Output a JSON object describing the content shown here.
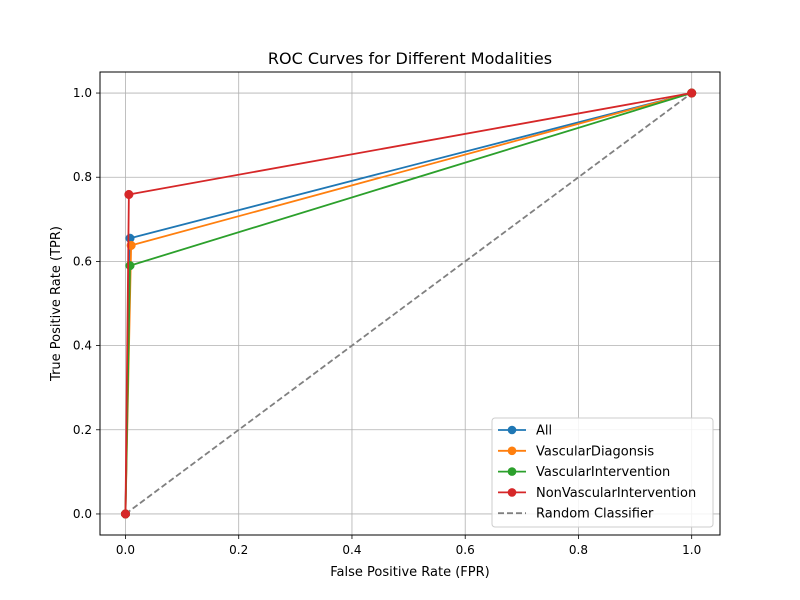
{
  "chart_data": {
    "type": "line",
    "title": "ROC Curves for Different Modalities",
    "xlabel": "False Positive Rate (FPR)",
    "ylabel": "True Positive Rate (TPR)",
    "xlim": [
      -0.045,
      1.05
    ],
    "ylim": [
      -0.05,
      1.05
    ],
    "xticks": [
      0.0,
      0.2,
      0.4,
      0.6,
      0.8,
      1.0
    ],
    "yticks": [
      0.0,
      0.2,
      0.4,
      0.6,
      0.8,
      1.0
    ],
    "xtick_labels": [
      "0.0",
      "0.2",
      "0.4",
      "0.6",
      "0.8",
      "1.0"
    ],
    "ytick_labels": [
      "0.0",
      "0.2",
      "0.4",
      "0.6",
      "0.8",
      "1.0"
    ],
    "grid": true,
    "legend_position": "lower-right",
    "series": [
      {
        "name": "All",
        "color": "#1f77b4",
        "marker": "circle",
        "style": "solid",
        "x": [
          0.0,
          0.008,
          1.0
        ],
        "y": [
          0.0,
          0.655,
          1.0
        ]
      },
      {
        "name": "VascularDiagonsis",
        "color": "#ff7f0e",
        "marker": "circle",
        "style": "solid",
        "x": [
          0.0,
          0.01,
          1.0
        ],
        "y": [
          0.0,
          0.638,
          1.0
        ]
      },
      {
        "name": "VascularIntervention",
        "color": "#2ca02c",
        "marker": "circle",
        "style": "solid",
        "x": [
          0.0,
          0.008,
          1.0
        ],
        "y": [
          0.0,
          0.59,
          1.0
        ]
      },
      {
        "name": "NonVascularIntervention",
        "color": "#d62728",
        "marker": "circle",
        "style": "solid",
        "x": [
          0.0,
          0.006,
          1.0
        ],
        "y": [
          0.0,
          0.759,
          1.0
        ]
      },
      {
        "name": "Random Classifier",
        "color": "#808080",
        "marker": "none",
        "style": "dashed",
        "x": [
          0.0,
          1.0
        ],
        "y": [
          0.0,
          1.0
        ]
      }
    ]
  }
}
